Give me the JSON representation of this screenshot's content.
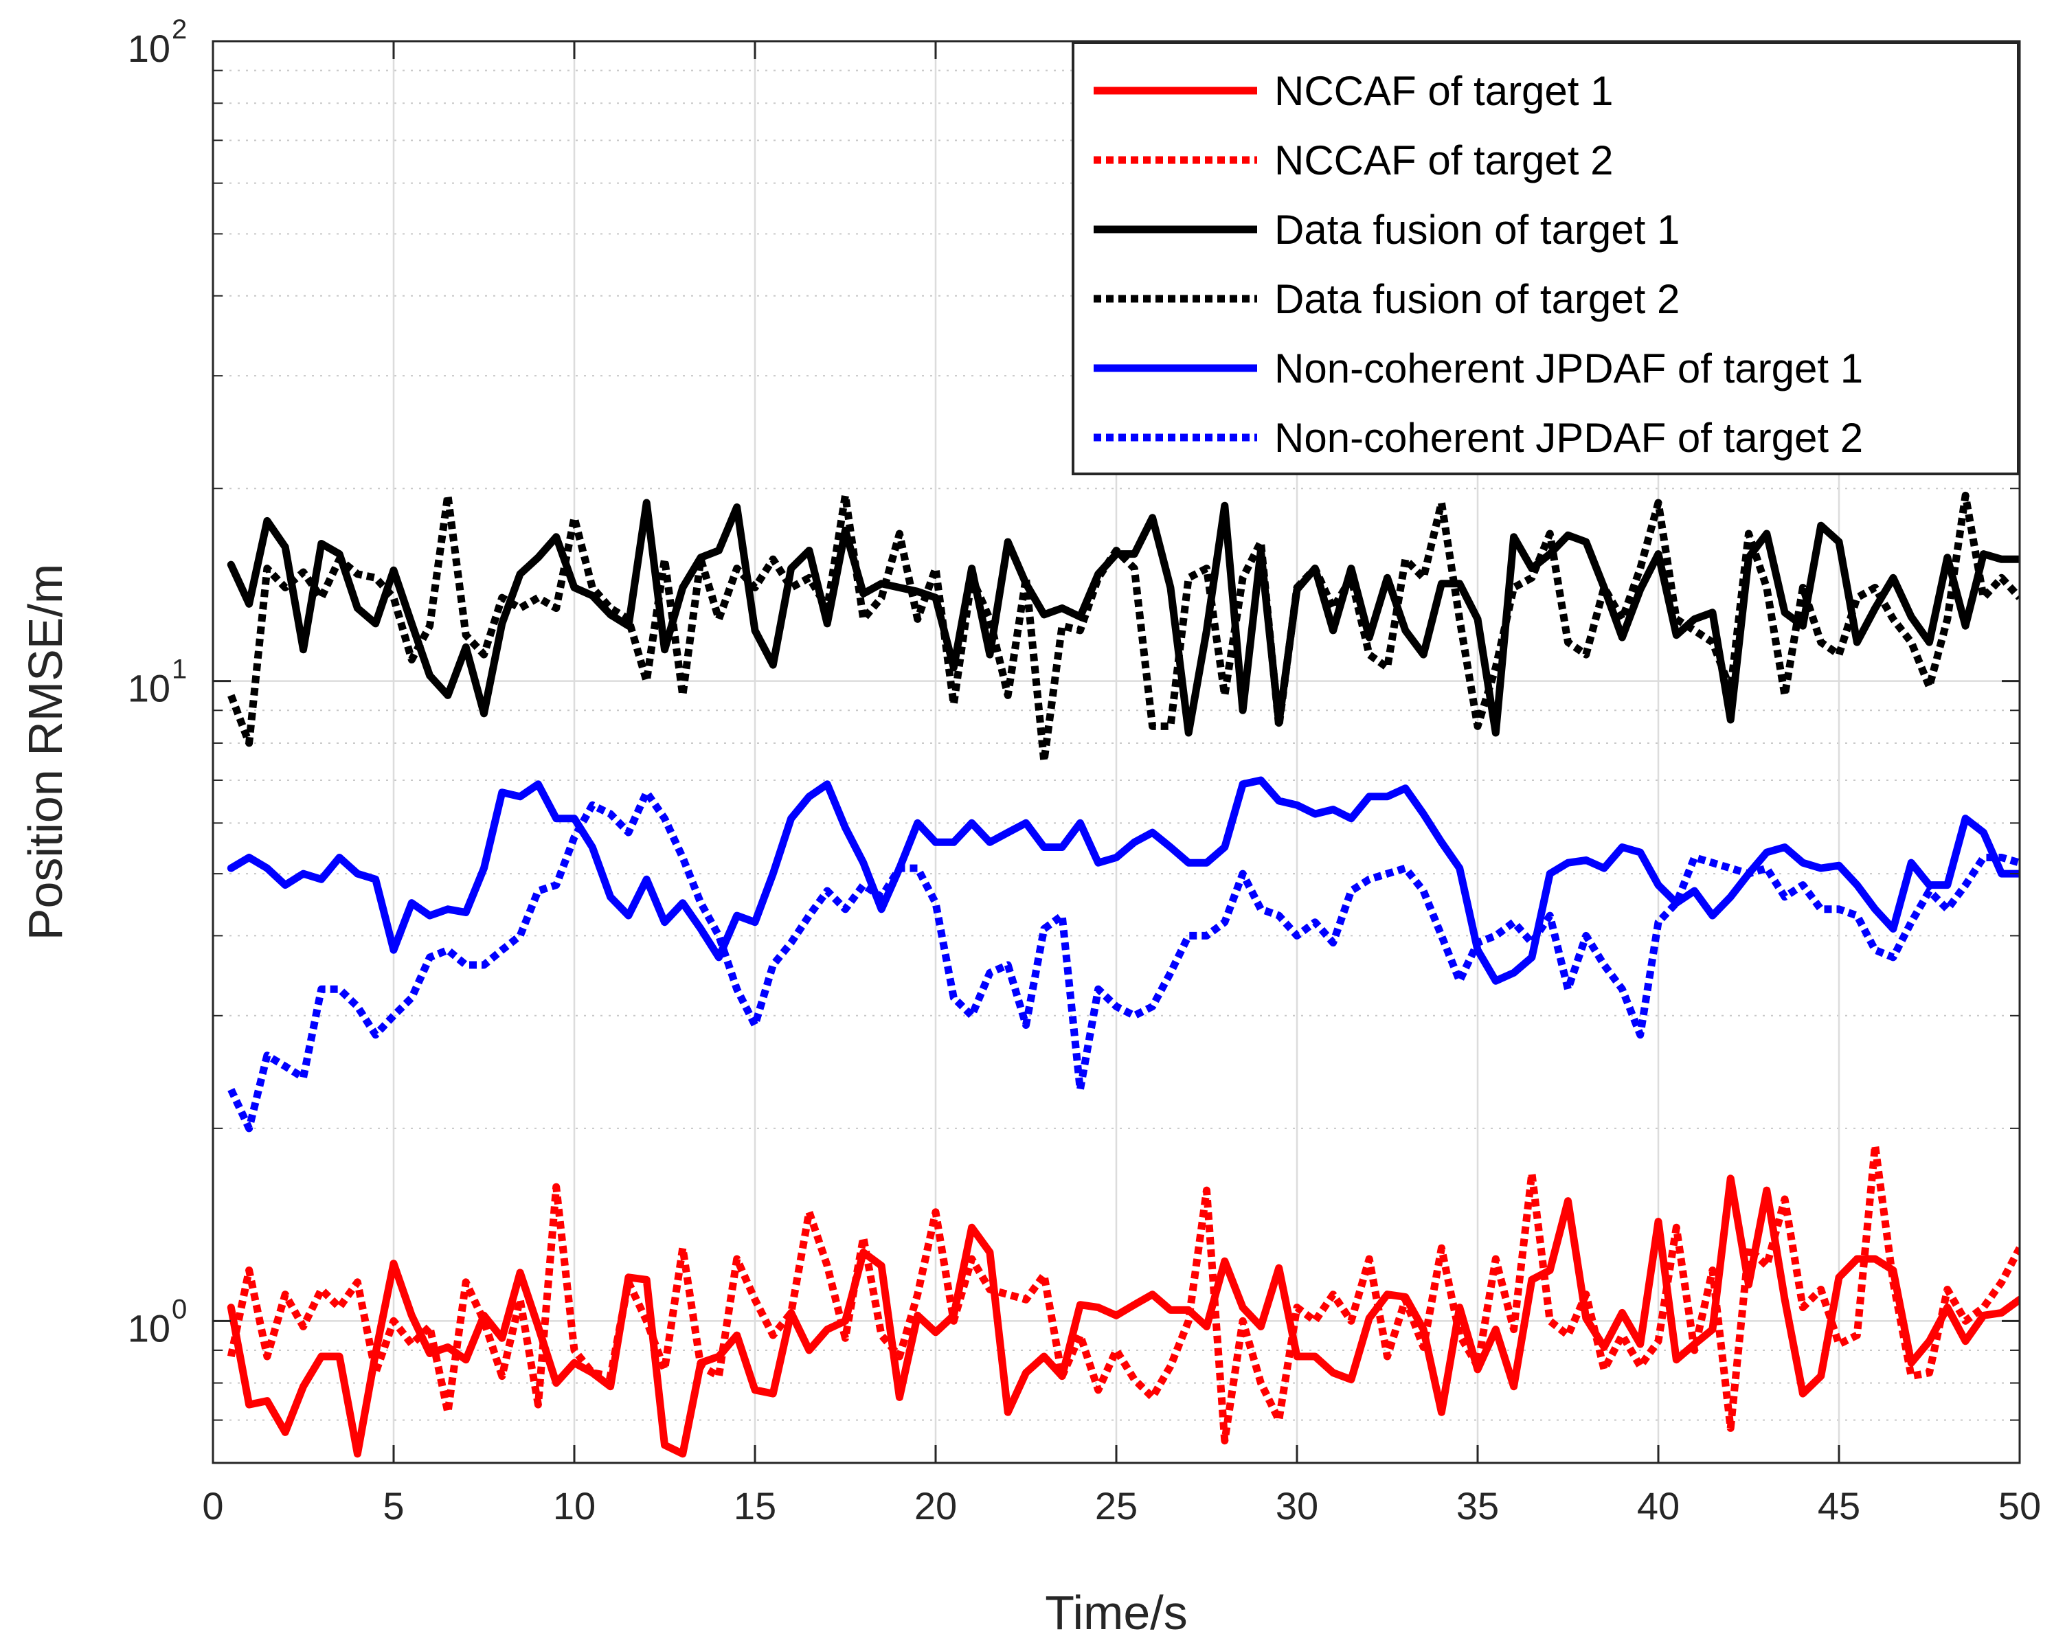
{
  "chart_data": {
    "type": "line",
    "title": "",
    "xlabel": "Time/s",
    "ylabel": "Position RMSE/m",
    "xlim": [
      0,
      50
    ],
    "ylim": [
      0.6,
      100
    ],
    "yscale": "log",
    "grid": true,
    "legend_position": "top-right",
    "x_ticks": [
      0,
      5,
      10,
      15,
      20,
      25,
      30,
      35,
      40,
      45,
      50
    ],
    "x_tick_labels": [
      "0",
      "5",
      "10",
      "15",
      "20",
      "25",
      "30",
      "35",
      "40",
      "45",
      "50"
    ],
    "y_ticks": [
      {
        "value": 1,
        "base": "10",
        "exp": "0"
      },
      {
        "value": 10,
        "base": "10",
        "exp": "1"
      },
      {
        "value": 100,
        "base": "10",
        "exp": "2"
      }
    ],
    "x": [
      0.5,
      1,
      1.5,
      2,
      2.5,
      3,
      3.5,
      4,
      4.5,
      5,
      5.5,
      6,
      6.5,
      7,
      7.5,
      8,
      8.5,
      9,
      9.5,
      10,
      10.5,
      11,
      11.5,
      12,
      12.5,
      13,
      13.5,
      14,
      14.5,
      15,
      15.5,
      16,
      16.5,
      17,
      17.5,
      18,
      18.5,
      19,
      19.5,
      20,
      20.5,
      21,
      21.5,
      22,
      22.5,
      23,
      23.5,
      24,
      24.5,
      25,
      25.5,
      26,
      26.5,
      27,
      27.5,
      28,
      28.5,
      29,
      29.5,
      30,
      30.5,
      31,
      31.5,
      32,
      32.5,
      33,
      33.5,
      34,
      34.5,
      35,
      35.5,
      36,
      36.5,
      37,
      37.5,
      38,
      38.5,
      39,
      39.5,
      40,
      40.5,
      41,
      41.5,
      42,
      42.5,
      43,
      43.5,
      44,
      44.5,
      45,
      45.5,
      46,
      46.5,
      47,
      47.5,
      48,
      48.5,
      49,
      49.5,
      50
    ],
    "series": [
      {
        "name": "NCCAF of target 1",
        "color": "#ff0000",
        "style": "solid",
        "values": [
          1.05,
          0.74,
          0.75,
          0.67,
          0.79,
          0.88,
          0.88,
          0.62,
          0.89,
          1.23,
          1.02,
          0.89,
          0.91,
          0.87,
          1.02,
          0.94,
          1.19,
          0.98,
          0.8,
          0.86,
          0.83,
          0.79,
          1.17,
          1.16,
          0.64,
          0.62,
          0.86,
          0.88,
          0.95,
          0.78,
          0.77,
          1.03,
          0.9,
          0.97,
          1.0,
          1.28,
          1.22,
          0.76,
          1.02,
          0.96,
          1.02,
          1.4,
          1.28,
          0.72,
          0.83,
          0.88,
          0.82,
          1.06,
          1.05,
          1.02,
          1.06,
          1.1,
          1.04,
          1.04,
          0.98,
          1.24,
          1.05,
          0.98,
          1.21,
          0.88,
          0.88,
          0.83,
          0.81,
          1.01,
          1.1,
          1.09,
          0.97,
          0.72,
          1.05,
          0.84,
          0.97,
          0.79,
          1.16,
          1.2,
          1.54,
          1.01,
          0.91,
          1.03,
          0.92,
          1.43,
          0.87,
          0.92,
          0.97,
          1.67,
          1.14,
          1.6,
          1.08,
          0.77,
          0.82,
          1.17,
          1.25,
          1.25,
          1.2,
          0.86,
          0.93,
          1.05,
          0.93,
          1.02,
          1.03,
          1.08
        ]
      },
      {
        "name": "NCCAF of target 2",
        "color": "#ff0000",
        "style": "dotted",
        "values": [
          0.88,
          1.2,
          0.88,
          1.1,
          0.98,
          1.12,
          1.05,
          1.15,
          0.83,
          1.0,
          0.92,
          0.98,
          0.72,
          1.15,
          1.0,
          0.82,
          1.08,
          0.74,
          1.62,
          0.9,
          0.83,
          0.82,
          1.15,
          1.0,
          0.84,
          1.3,
          0.85,
          0.82,
          1.25,
          1.08,
          0.95,
          1.03,
          1.48,
          1.22,
          0.94,
          1.35,
          0.95,
          0.88,
          1.1,
          1.48,
          1.0,
          1.25,
          1.12,
          1.1,
          1.08,
          1.18,
          0.82,
          0.95,
          0.78,
          0.9,
          0.81,
          0.76,
          0.85,
          1.0,
          1.6,
          0.65,
          1.0,
          0.8,
          0.7,
          1.05,
          1.0,
          1.1,
          1.0,
          1.25,
          0.88,
          1.08,
          0.91,
          1.3,
          0.95,
          0.85,
          1.25,
          0.97,
          1.7,
          1.0,
          0.95,
          1.1,
          0.84,
          0.95,
          0.85,
          0.93,
          1.4,
          0.9,
          1.2,
          0.68,
          1.3,
          1.22,
          1.55,
          1.05,
          1.12,
          0.92,
          0.95,
          1.88,
          1.15,
          0.82,
          0.83,
          1.12,
          1.0,
          1.05,
          1.15,
          1.3
        ]
      },
      {
        "name": "Data fusion of target 1",
        "color": "#000000",
        "style": "solid",
        "values": [
          15.2,
          13.2,
          17.8,
          16.2,
          11.2,
          16.4,
          15.8,
          13.0,
          12.3,
          14.9,
          12.3,
          10.2,
          9.5,
          11.3,
          8.9,
          12.3,
          14.7,
          15.6,
          16.8,
          14.0,
          13.6,
          12.7,
          12.2,
          19.0,
          11.2,
          14.0,
          15.6,
          16.0,
          18.7,
          12.0,
          10.6,
          15.0,
          16.0,
          12.3,
          17.2,
          13.7,
          14.2,
          14.0,
          13.8,
          13.5,
          10.5,
          15.0,
          11.0,
          16.5,
          14.2,
          12.7,
          13.0,
          12.6,
          14.7,
          15.8,
          15.8,
          18.0,
          14.0,
          8.3,
          12.0,
          18.8,
          9.0,
          16.0,
          8.6,
          13.9,
          15.0,
          12.0,
          15.0,
          11.7,
          14.5,
          12.0,
          11.0,
          14.2,
          14.2,
          12.5,
          8.3,
          16.8,
          15.0,
          15.8,
          16.9,
          16.5,
          14.0,
          11.7,
          13.9,
          15.8,
          11.8,
          12.5,
          12.8,
          8.7,
          15.6,
          17.0,
          12.8,
          12.2,
          17.5,
          16.5,
          11.5,
          13.0,
          14.5,
          12.6,
          11.5,
          15.6,
          12.2,
          15.8,
          15.5,
          15.5
        ]
      },
      {
        "name": "Data fusion of target 2",
        "color": "#000000",
        "style": "dotted",
        "values": [
          9.5,
          8.0,
          15.0,
          14.0,
          14.8,
          13.5,
          15.5,
          14.7,
          14.5,
          13.5,
          10.8,
          12.2,
          19.5,
          11.8,
          11.0,
          13.5,
          13.0,
          13.5,
          13.0,
          18.0,
          14.0,
          13.0,
          12.5,
          10.0,
          15.5,
          9.5,
          15.5,
          12.5,
          15.0,
          14.0,
          15.5,
          14.0,
          14.5,
          13.0,
          19.5,
          12.5,
          13.5,
          17.0,
          12.5,
          15.0,
          9.2,
          14.5,
          12.5,
          9.5,
          14.5,
          7.5,
          12.2,
          12.0,
          14.5,
          16.0,
          15.0,
          8.5,
          8.5,
          14.5,
          15.0,
          9.5,
          14.5,
          16.5,
          8.5,
          14.0,
          15.0,
          13.0,
          14.5,
          11.0,
          10.5,
          15.5,
          14.5,
          19.0,
          12.5,
          8.5,
          10.5,
          14.0,
          14.5,
          17.0,
          11.5,
          11.0,
          14.0,
          12.5,
          15.0,
          19.0,
          12.5,
          12.0,
          11.5,
          9.7,
          17.0,
          14.0,
          9.5,
          14.0,
          11.5,
          11.0,
          13.5,
          14.0,
          12.5,
          11.5,
          9.8,
          12.5,
          19.5,
          13.5,
          14.5,
          13.5
        ]
      },
      {
        "name": "Non-coherent JPDAF of target 1",
        "color": "#0000ff",
        "style": "solid",
        "values": [
          5.1,
          5.3,
          5.1,
          4.8,
          5.0,
          4.9,
          5.3,
          5.0,
          4.9,
          3.8,
          4.5,
          4.3,
          4.4,
          4.35,
          5.1,
          6.7,
          6.6,
          6.9,
          6.1,
          6.1,
          5.5,
          4.6,
          4.3,
          4.9,
          4.2,
          4.5,
          4.1,
          3.7,
          4.3,
          4.2,
          5.0,
          6.1,
          6.6,
          6.9,
          5.9,
          5.2,
          4.4,
          5.1,
          6.0,
          5.6,
          5.6,
          6.0,
          5.6,
          5.8,
          6.0,
          5.5,
          5.5,
          6.0,
          5.2,
          5.3,
          5.6,
          5.8,
          5.5,
          5.2,
          5.2,
          5.5,
          6.9,
          7.0,
          6.5,
          6.4,
          6.2,
          6.3,
          6.1,
          6.6,
          6.6,
          6.8,
          6.2,
          5.6,
          5.1,
          3.8,
          3.4,
          3.5,
          3.7,
          5.0,
          5.2,
          5.25,
          5.1,
          5.5,
          5.4,
          4.8,
          4.5,
          4.7,
          4.3,
          4.6,
          5.0,
          5.4,
          5.5,
          5.2,
          5.1,
          5.15,
          4.8,
          4.4,
          4.1,
          5.2,
          4.8,
          4.8,
          6.1,
          5.8,
          5.0,
          5.0
        ]
      },
      {
        "name": "Non-coherent JPDAF of target 2",
        "color": "#0000ff",
        "style": "dotted",
        "values": [
          2.3,
          2.0,
          2.6,
          2.5,
          2.4,
          3.3,
          3.3,
          3.1,
          2.8,
          3.0,
          3.2,
          3.7,
          3.8,
          3.6,
          3.6,
          3.8,
          4.0,
          4.7,
          4.8,
          5.7,
          6.4,
          6.2,
          5.8,
          6.7,
          6.1,
          5.3,
          4.5,
          4.0,
          3.3,
          2.9,
          3.6,
          3.9,
          4.3,
          4.7,
          4.4,
          4.8,
          4.6,
          5.1,
          5.1,
          4.5,
          3.2,
          3.0,
          3.5,
          3.6,
          2.9,
          4.1,
          4.3,
          2.3,
          3.3,
          3.1,
          3.0,
          3.1,
          3.5,
          4.0,
          4.0,
          4.2,
          5.0,
          4.4,
          4.3,
          4.0,
          4.2,
          3.9,
          4.7,
          4.9,
          5.0,
          5.1,
          4.7,
          4.0,
          3.4,
          3.9,
          4.0,
          4.2,
          3.9,
          4.3,
          3.3,
          4.0,
          3.6,
          3.3,
          2.8,
          4.2,
          4.5,
          5.3,
          5.2,
          5.1,
          5.0,
          5.1,
          4.6,
          4.8,
          4.4,
          4.4,
          4.3,
          3.8,
          3.7,
          4.2,
          4.7,
          4.4,
          4.8,
          5.3,
          5.3,
          5.2
        ]
      }
    ]
  }
}
